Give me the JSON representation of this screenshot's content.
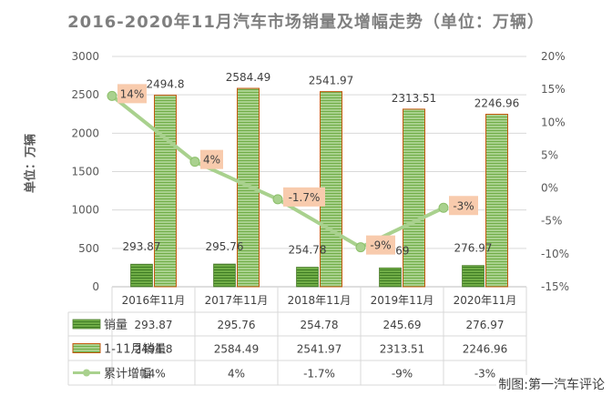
{
  "title": "2016-2020年11月汽车市场销量及增幅走势（单位：万辆）",
  "credit": "制图:第一汽车评论",
  "chart_data": {
    "type": "bar",
    "categories": [
      "2016年11月",
      "2017年11月",
      "2018年11月",
      "2019年11月",
      "2020年11月"
    ],
    "ylabel": "单位：万辆",
    "ylim": [
      0,
      3000
    ],
    "yticks": [
      "0",
      "500",
      "1000",
      "1500",
      "2000",
      "2500",
      "3000"
    ],
    "y2lim": [
      -15,
      20
    ],
    "y2ticks": [
      "-15%",
      "-10%",
      "-5%",
      "0%",
      "5%",
      "10%",
      "15%",
      "20%"
    ],
    "series": [
      {
        "name": "销量",
        "type": "bar",
        "values": [
          293.87,
          295.76,
          254.78,
          245.69,
          276.97
        ],
        "labels": [
          "293.87",
          "295.76",
          "254.78",
          "245.69",
          "276.97"
        ],
        "color": "#70ad47"
      },
      {
        "name": "1-11月销量",
        "type": "bar",
        "values": [
          2494.8,
          2584.49,
          2541.97,
          2313.51,
          2246.96
        ],
        "labels": [
          "2494.8",
          "2584.49",
          "2541.97",
          "2313.51",
          "2246.96"
        ],
        "color": "#a9d18e"
      },
      {
        "name": "累计增幅",
        "type": "line",
        "axis": "secondary",
        "values": [
          14,
          4,
          -1.7,
          -9,
          -3
        ],
        "labels": [
          "14%",
          "4%",
          "-1.7%",
          "-9%",
          "-3%"
        ],
        "color": "#a9d18e"
      }
    ]
  }
}
